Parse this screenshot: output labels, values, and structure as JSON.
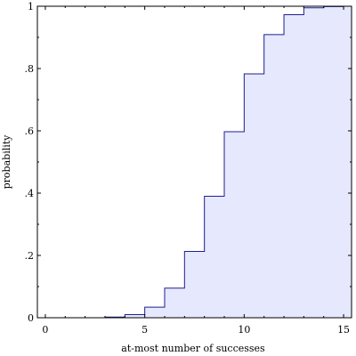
{
  "chart_data": {
    "type": "area",
    "title": "",
    "xlabel": "at-most number of successes",
    "ylabel": "probability",
    "xlim": [
      -0.4,
      15.4
    ],
    "ylim": [
      0,
      1
    ],
    "x_ticks": [
      0,
      5,
      10,
      15
    ],
    "x_tick_labels": [
      "0",
      "5",
      "10",
      "15"
    ],
    "y_ticks": [
      0,
      0.2,
      0.4,
      0.6,
      0.8,
      1
    ],
    "y_tick_labels": [
      "0",
      ".2",
      ".4",
      ".6",
      ".8",
      "1"
    ],
    "grid": false,
    "step": "post",
    "colors": {
      "line": "#1f1f8f",
      "fill": "#e6e8fd",
      "axis": "#000000"
    },
    "series": [
      {
        "x": [
          0,
          1,
          2,
          3,
          4,
          5,
          6,
          7,
          8,
          9,
          10,
          11,
          12,
          13,
          14,
          15
        ],
        "values": [
          0.0,
          0.0,
          0.0,
          0.002,
          0.01,
          0.034,
          0.095,
          0.213,
          0.39,
          0.597,
          0.783,
          0.909,
          0.973,
          0.995,
          0.999,
          1.0
        ]
      }
    ]
  }
}
